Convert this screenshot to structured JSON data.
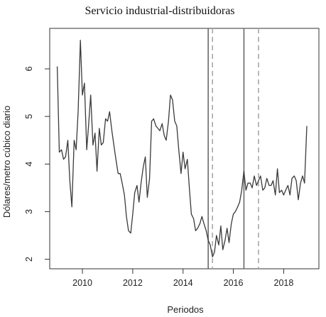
{
  "chart_data": {
    "type": "line",
    "title": "Servicio industrial-distribuidoras",
    "xlabel": "Periodos",
    "ylabel": "Dólares/metro cúbico diario",
    "xlim": [
      2008.7,
      2019.4
    ],
    "ylim": [
      1.8,
      6.85
    ],
    "x_ticks": [
      2010,
      2012,
      2014,
      2016,
      2018
    ],
    "y_ticks": [
      2,
      3,
      4,
      5,
      6
    ],
    "grid": false,
    "vertical_lines": [
      {
        "x": 2015.0,
        "style": "solid"
      },
      {
        "x": 2015.17,
        "style": "dashed"
      },
      {
        "x": 2016.42,
        "style": "solid"
      },
      {
        "x": 2017.0,
        "style": "dashed"
      }
    ],
    "series": [
      {
        "x": [
          2009.0,
          2009.08,
          2009.17,
          2009.25,
          2009.33,
          2009.42,
          2009.5,
          2009.58,
          2009.67,
          2009.75,
          2009.83,
          2009.92,
          2010.0,
          2010.08,
          2010.17,
          2010.25,
          2010.33,
          2010.42,
          2010.5,
          2010.58,
          2010.67,
          2010.75,
          2010.83,
          2010.92,
          2011.0,
          2011.08,
          2011.17,
          2011.25,
          2011.33,
          2011.42,
          2011.5,
          2011.58,
          2011.67,
          2011.75,
          2011.83,
          2011.92,
          2012.0,
          2012.08,
          2012.17,
          2012.25,
          2012.33,
          2012.42,
          2012.5,
          2012.58,
          2012.67,
          2012.75,
          2012.83,
          2012.92,
          2013.0,
          2013.08,
          2013.17,
          2013.25,
          2013.33,
          2013.42,
          2013.5,
          2013.58,
          2013.67,
          2013.75,
          2013.83,
          2013.92,
          2014.0,
          2014.08,
          2014.17,
          2014.25,
          2014.33,
          2014.42,
          2014.5,
          2014.58,
          2014.67,
          2014.75,
          2014.83,
          2014.92,
          2015.0,
          2015.08,
          2015.17,
          2015.25,
          2015.33,
          2015.42,
          2015.5,
          2015.58,
          2015.67,
          2015.75,
          2015.83,
          2015.92,
          2016.0,
          2016.08,
          2016.17,
          2016.25,
          2016.33,
          2016.42,
          2016.5,
          2016.58,
          2016.67,
          2016.75,
          2016.83,
          2016.92,
          2017.0,
          2017.08,
          2017.17,
          2017.25,
          2017.33,
          2017.42,
          2017.5,
          2017.58,
          2017.67,
          2017.75,
          2017.83,
          2017.92,
          2018.0,
          2018.08,
          2018.17,
          2018.25,
          2018.33,
          2018.42,
          2018.5,
          2018.58,
          2018.67,
          2018.75,
          2018.83,
          2018.92
        ],
        "values": [
          6.05,
          4.25,
          4.3,
          4.1,
          4.15,
          4.5,
          3.65,
          3.1,
          4.5,
          4.3,
          5.1,
          6.6,
          5.45,
          5.7,
          4.3,
          4.85,
          5.45,
          4.4,
          4.65,
          3.85,
          4.75,
          4.4,
          4.45,
          4.95,
          4.9,
          5.1,
          4.7,
          4.4,
          4.1,
          3.8,
          3.8,
          3.6,
          3.35,
          2.9,
          2.6,
          2.55,
          2.95,
          3.4,
          3.55,
          3.2,
          3.6,
          3.95,
          4.15,
          3.3,
          3.7,
          4.9,
          4.95,
          4.8,
          4.75,
          4.7,
          4.85,
          4.6,
          4.5,
          4.9,
          5.45,
          5.35,
          4.9,
          4.8,
          4.3,
          3.8,
          4.25,
          3.9,
          4.1,
          3.5,
          2.95,
          2.85,
          2.6,
          2.65,
          2.75,
          2.9,
          2.75,
          2.6,
          2.4,
          2.3,
          2.05,
          2.15,
          2.5,
          2.3,
          2.7,
          2.2,
          2.4,
          2.65,
          2.35,
          2.75,
          2.95,
          3.0,
          3.1,
          3.2,
          3.45,
          3.85,
          3.45,
          3.6,
          3.6,
          3.5,
          3.75,
          3.55,
          3.65,
          3.75,
          3.45,
          3.5,
          3.7,
          3.55,
          3.55,
          3.65,
          3.35,
          3.9,
          3.4,
          3.45,
          3.35,
          3.45,
          3.55,
          3.35,
          3.7,
          3.75,
          3.65,
          3.25,
          3.6,
          3.75,
          3.6,
          4.8
        ]
      }
    ]
  }
}
